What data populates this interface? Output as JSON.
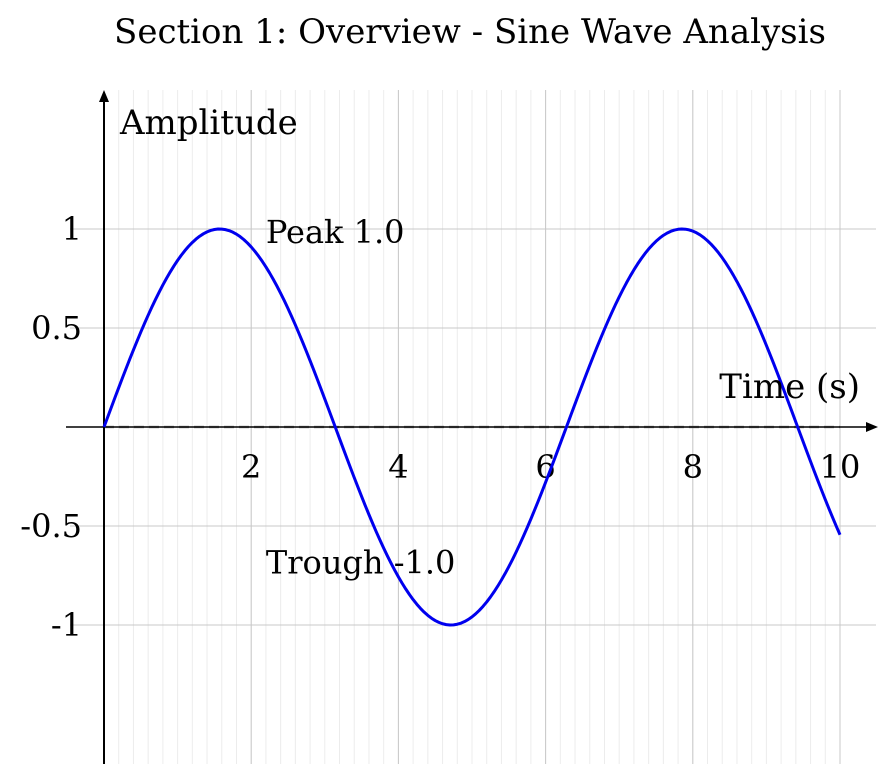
{
  "chart_data": {
    "type": "line",
    "title": "Section 1: Overview - Sine Wave Analysis",
    "xlabel": "Time (s)",
    "ylabel": "Amplitude",
    "xlim": [
      0,
      10
    ],
    "ylim": [
      -1.7,
      1.7
    ],
    "x_ticks": [
      2,
      4,
      6,
      8,
      10
    ],
    "x_tick_labels": [
      "2",
      "4",
      "6",
      "8",
      "10"
    ],
    "y_ticks": [
      1,
      0.5,
      -0.5,
      -1
    ],
    "y_tick_labels": [
      "1",
      "0.5",
      "-0.5",
      "-1"
    ],
    "grid": true,
    "minor_grid_step": 0.2,
    "series": [
      {
        "function": "sin(x)",
        "color": "#0000ee",
        "x_start": 0,
        "x_end": 10,
        "samples": 201
      }
    ],
    "reference_line": {
      "y": 0,
      "style": "dashed",
      "color": "#999999"
    },
    "annotations": [
      {
        "label": "Peak",
        "value": "1.0",
        "x": 2.2,
        "y": 0.93
      },
      {
        "label": "Trough",
        "value": "-1.0",
        "x": 2.2,
        "y": -0.74
      }
    ],
    "colors": {
      "curve": "#0000ee",
      "major_grid": "#c8c8c8",
      "minor_grid": "#ececec",
      "axis": "#000000"
    }
  }
}
